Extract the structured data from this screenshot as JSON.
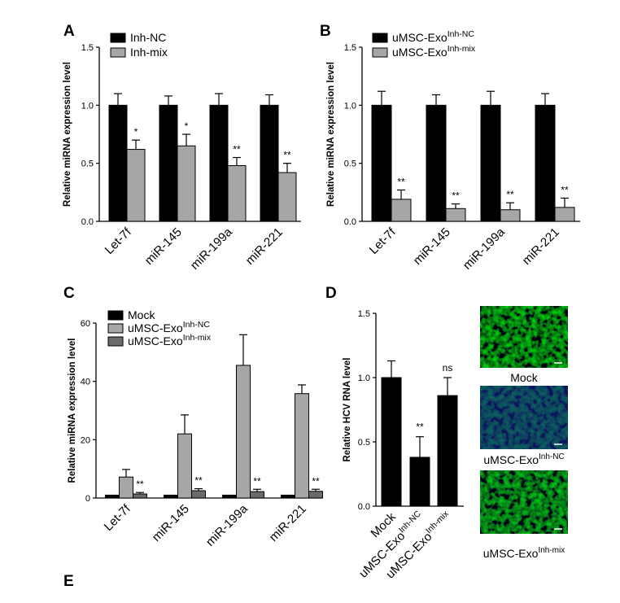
{
  "panel_letters": [
    "A",
    "B",
    "C",
    "D",
    "E"
  ],
  "chart_data": [
    {
      "panel": "A",
      "type": "bar",
      "ylabel": "Relative miRNA expression level",
      "ylim": [
        0,
        1.5
      ],
      "yticks": [
        "0.0",
        "0.5",
        "1.0",
        "1.5"
      ],
      "categories": [
        "Let-7f",
        "miR-145",
        "miR-199a",
        "miR-221"
      ],
      "series": [
        {
          "name": "Inh-NC",
          "color": "#000000",
          "values": [
            1.0,
            1.0,
            1.0,
            1.0
          ],
          "errors": [
            0.1,
            0.08,
            0.1,
            0.09
          ],
          "sig": [
            "",
            "",
            "",
            ""
          ]
        },
        {
          "name": "Inh-mix",
          "color": "#a6a6a6",
          "values": [
            0.62,
            0.65,
            0.48,
            0.42
          ],
          "errors": [
            0.08,
            0.1,
            0.07,
            0.08
          ],
          "sig": [
            "*",
            "*",
            "**",
            "**"
          ]
        }
      ],
      "legend": "top-left"
    },
    {
      "panel": "B",
      "type": "bar",
      "ylabel": "Relative miRNA expression level",
      "ylim": [
        0,
        1.5
      ],
      "yticks": [
        "0.0",
        "0.5",
        "1.0",
        "1.5"
      ],
      "categories": [
        "Let-7f",
        "miR-145",
        "miR-199a",
        "miR-221"
      ],
      "series": [
        {
          "name": "uMSC-Exo",
          "sup": "Inh-NC",
          "color": "#000000",
          "values": [
            1.0,
            1.0,
            1.0,
            1.0
          ],
          "errors": [
            0.12,
            0.09,
            0.12,
            0.1
          ],
          "sig": [
            "",
            "",
            "",
            ""
          ]
        },
        {
          "name": "uMSC-Exo",
          "sup": "Inh-mix",
          "color": "#a6a6a6",
          "values": [
            0.19,
            0.11,
            0.1,
            0.12
          ],
          "errors": [
            0.08,
            0.04,
            0.06,
            0.08
          ],
          "sig": [
            "**",
            "**",
            "**",
            "**"
          ]
        }
      ],
      "legend": "top-left"
    },
    {
      "panel": "C",
      "type": "bar",
      "ylabel": "Relative miRNA expression level",
      "ylim": [
        0,
        60
      ],
      "yticks": [
        "0",
        "20",
        "40",
        "60"
      ],
      "categories": [
        "Let-7f",
        "miR-145",
        "miR-199a",
        "miR-221"
      ],
      "series": [
        {
          "name": "Mock",
          "color": "#000000",
          "values": [
            1.0,
            1.0,
            1.0,
            1.0
          ],
          "errors": [
            0,
            0,
            0,
            0
          ],
          "sig": [
            "",
            "",
            "",
            ""
          ]
        },
        {
          "name": "uMSC-Exo",
          "sup": "Inh-NC",
          "color": "#a6a6a6",
          "values": [
            7.2,
            22.0,
            45.5,
            35.8
          ],
          "errors": [
            2.6,
            6.5,
            10.5,
            3.0
          ],
          "sig": [
            "",
            "",
            "",
            ""
          ]
        },
        {
          "name": "uMSC-Exo",
          "sup": "Inh-mix",
          "color": "#6b6b6b",
          "values": [
            1.4,
            2.5,
            2.2,
            2.3
          ],
          "errors": [
            0.5,
            0.7,
            0.8,
            0.7
          ],
          "sig": [
            "**",
            "**",
            "**",
            "**"
          ]
        }
      ],
      "legend": "top-left"
    },
    {
      "panel": "D",
      "type": "bar",
      "ylabel": "Relative HCV RNA level",
      "ylim": [
        0,
        1.5
      ],
      "yticks": [
        "0.0",
        "0.5",
        "1.0",
        "1.5"
      ],
      "categories": [
        {
          "label": "Mock",
          "sup": ""
        },
        {
          "label": "uMSC-Exo",
          "sup": "Inh-NC"
        },
        {
          "label": "uMSC-Exo",
          "sup": "Inh-mix"
        }
      ],
      "values": [
        1.0,
        0.38,
        0.86
      ],
      "errors": [
        0.13,
        0.16,
        0.14
      ],
      "sig": [
        "",
        "**",
        "ns"
      ],
      "color": "#000000"
    }
  ],
  "images": [
    {
      "caption": "Mock",
      "sup": ""
    },
    {
      "caption": "uMSC-Exo",
      "sup": "Inh-NC"
    },
    {
      "caption": "uMSC-Exo",
      "sup": "Inh-mix"
    }
  ]
}
